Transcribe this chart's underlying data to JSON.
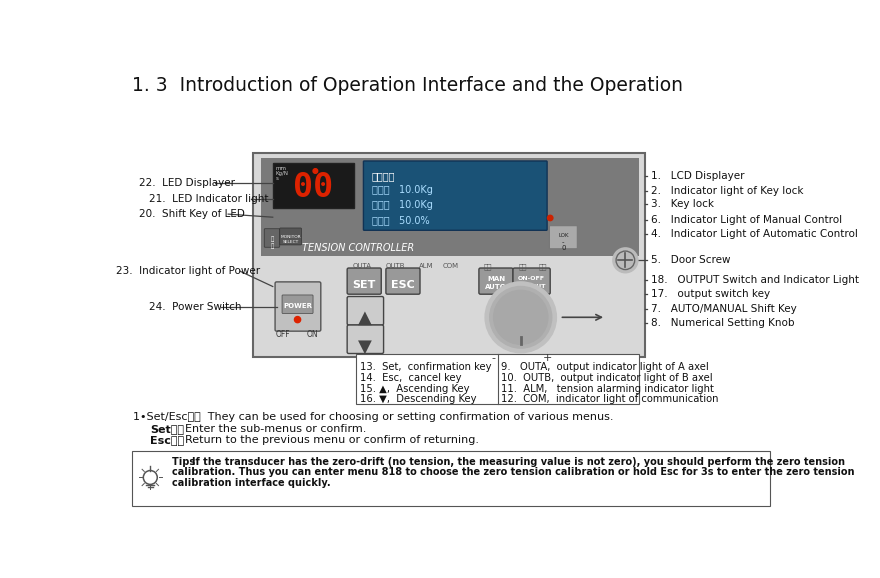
{
  "title": "1. 3  Introduction of Operation Interface and the Operation",
  "bg_color": "#ffffff",
  "panel_outer_color": "#d0d0d0",
  "panel_inner_top_color": "#888888",
  "right_labels": [
    [
      1,
      "LCD Displayer"
    ],
    [
      2,
      "Indicator light of Key lock"
    ],
    [
      3,
      "Key lock"
    ],
    [
      6,
      "Indicator Light of Manual Control"
    ],
    [
      4,
      "Indicator Light of Automatic Control"
    ],
    [
      5,
      "Door Screw"
    ],
    [
      18,
      "OUTPUT Switch and Indicator Light"
    ],
    [
      17,
      "output switch key"
    ],
    [
      7,
      "AUTO/MANUAL Shift Key"
    ],
    [
      8,
      "Numerical Setting Knob"
    ]
  ],
  "left_labels": [
    [
      22,
      "LED Displayer"
    ],
    [
      21,
      "LED Indicator light"
    ],
    [
      20,
      "Shift Key of LED"
    ],
    [
      23,
      "Indicator light of Power"
    ],
    [
      24,
      "Power Switch"
    ]
  ],
  "bottom_left_labels": [
    "13.  Set,  confirmation key",
    "14.  Esc,  cancel key",
    "15. ▲,  Ascending Key",
    "16. ▼,  Descending Key"
  ],
  "bottom_right_labels": [
    "9.   OUTA,  output indicator light of A axel",
    "10.  OUTB,  output indicator light of B axel",
    "11.  ALM,   tension alarming indicator light",
    "12.  COM,  indicator light of communication"
  ],
  "note_line1": "1•Set/Esc鍵：  They can be used for choosing or setting confirmation of various menus.",
  "note_line2_bold": "Set鍵：",
  "note_line2_rest": "  Enter the sub-menus or confirm.",
  "note_line3_bold": "Esc鍵：",
  "note_line3_rest": "  Return to the previous menu or confirm of returning.",
  "tip_bold": "Tips  ",
  "tip_line1": "If the transducer has the zero-drift (no tension, the measuring value is not zero), you should perform the zero tension",
  "tip_line2": "calibration. Thus you can enter menu 818 to choose the zero tension calibration or hold Esc for 3s to enter the zero tension",
  "tip_line3": "calibration interface quickly.",
  "lcd_line1": "自动运行",
  "lcd_line2": "设定値   10.0Kg",
  "lcd_line3": "实际値   10.0Kg",
  "lcd_line4": "输出値   50.0%"
}
